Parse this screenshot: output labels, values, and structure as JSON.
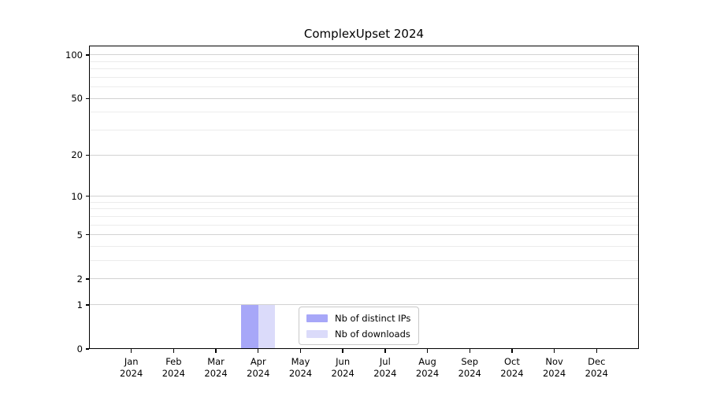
{
  "chart_data": {
    "type": "bar",
    "title": "ComplexUpset 2024",
    "categories": [
      "Jan 2024",
      "Feb 2024",
      "Mar 2024",
      "Apr 2024",
      "May 2024",
      "Jun 2024",
      "Jul 2024",
      "Aug 2024",
      "Sep 2024",
      "Oct 2024",
      "Nov 2024",
      "Dec 2024"
    ],
    "series": [
      {
        "name": "Nb of distinct IPs",
        "color": "#a7a7f8",
        "values": [
          0,
          0,
          0,
          1,
          0,
          0,
          0,
          0,
          0,
          0,
          0,
          0
        ]
      },
      {
        "name": "Nb of downloads",
        "color": "#dbdbfa",
        "values": [
          0,
          0,
          0,
          1,
          0,
          0,
          0,
          0,
          0,
          0,
          0,
          0
        ]
      }
    ],
    "xlabel": "",
    "ylabel": "",
    "yscale": "log1p",
    "ylim": [
      0,
      116
    ],
    "y_major_ticks": [
      0,
      1,
      2,
      5,
      10,
      20,
      50,
      100
    ],
    "y_minor_gridlines": [
      3,
      4,
      6,
      7,
      8,
      9,
      30,
      40,
      60,
      70,
      80,
      90
    ],
    "grid": "horizontal",
    "legend_position": "inside-bottom-center"
  }
}
